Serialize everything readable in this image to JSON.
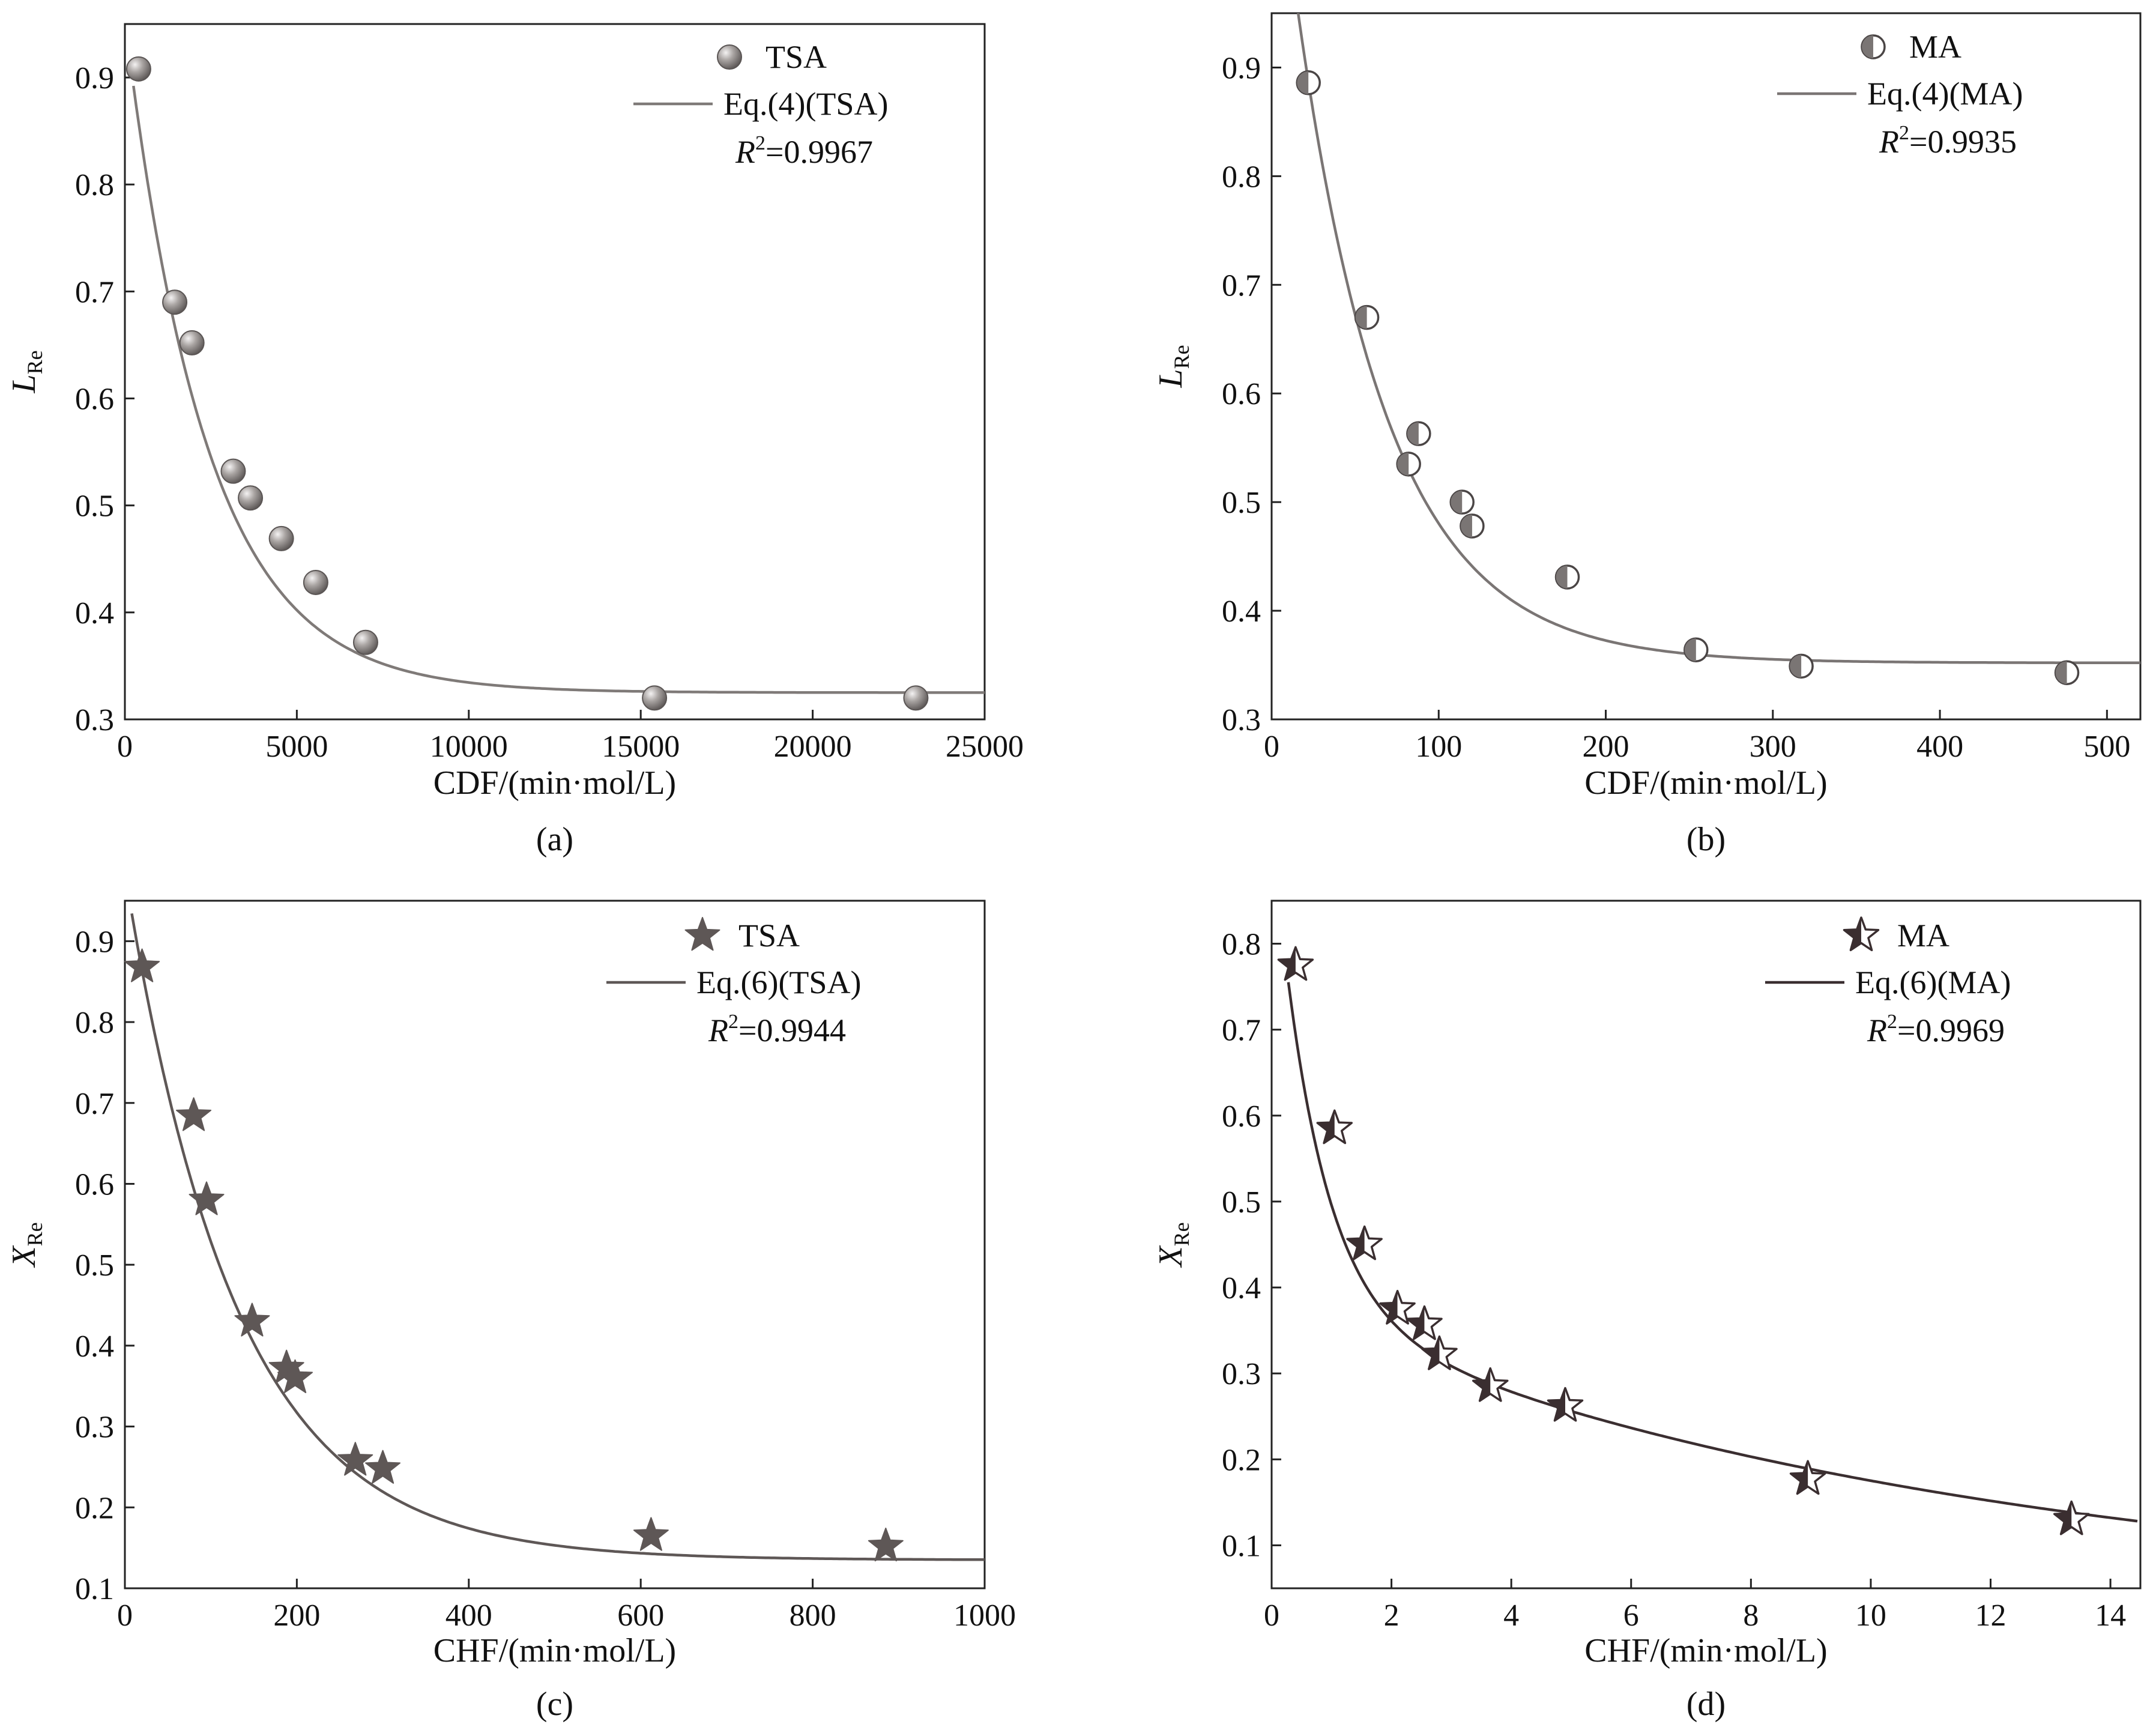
{
  "figure": {
    "title": ""
  },
  "chart_data": [
    {
      "type": "scatter",
      "panel": "(a)",
      "title": "",
      "xlabel": "CDF/(min·mol/L)",
      "ylabel": "L",
      "ylabel_sub": "Re",
      "xlim": [
        0,
        25000
      ],
      "ylim": [
        0.3,
        0.95
      ],
      "xticks": [
        0,
        5000,
        10000,
        15000,
        20000,
        25000
      ],
      "yticks": [
        0.3,
        0.4,
        0.5,
        0.6,
        0.7,
        0.8,
        0.9
      ],
      "grid": false,
      "legend": {
        "position": "top-right",
        "marker_label": "TSA",
        "line_label": "Eq.(4)(TSA)",
        "r2_symbol": "R",
        "r2_text": "=0.9967"
      },
      "marker": "sphere",
      "color": "#7f7a78",
      "series": [
        {
          "name": "TSA",
          "x": [
            400,
            1450,
            1950,
            3150,
            3650,
            4550,
            5550,
            7000,
            15400,
            23000
          ],
          "y": [
            0.908,
            0.69,
            0.652,
            0.532,
            0.507,
            0.469,
            0.428,
            0.372,
            0.32,
            0.32
          ]
        }
      ],
      "fit": {
        "name": "Eq.(4)(TSA)",
        "model": "exp_decay",
        "a": 0.325,
        "b": 0.63,
        "k": 0.00042,
        "x_start": 250,
        "x_end": 25000
      }
    },
    {
      "type": "scatter",
      "panel": "(b)",
      "title": "",
      "xlabel": "CDF/(min·mol/L)",
      "ylabel": "L",
      "ylabel_sub": "Re",
      "xlim": [
        0,
        520
      ],
      "ylim": [
        0.3,
        0.95
      ],
      "xticks": [
        0,
        100,
        200,
        300,
        400,
        500
      ],
      "yticks": [
        0.3,
        0.4,
        0.5,
        0.6,
        0.7,
        0.8,
        0.9
      ],
      "grid": false,
      "legend": {
        "position": "top-right",
        "marker_label": "MA",
        "line_label": "Eq.(4)(MA)",
        "r2_symbol": "R",
        "r2_text": "=0.9935"
      },
      "marker": "half-circle",
      "color": "#7a7574",
      "series": [
        {
          "name": "MA",
          "x": [
            22,
            57,
            82,
            88,
            114,
            120,
            177,
            254,
            317,
            476
          ],
          "y": [
            0.886,
            0.67,
            0.535,
            0.563,
            0.5,
            0.478,
            0.431,
            0.364,
            0.349,
            0.343
          ]
        }
      ],
      "fit": {
        "name": "Eq.(4)(MA)",
        "model": "exp_decay",
        "a": 0.352,
        "b": 0.8,
        "k": 0.0183,
        "x_start": 15,
        "x_end": 520
      }
    },
    {
      "type": "scatter",
      "panel": "(c)",
      "title": "",
      "xlabel": "CHF/(min·mol/L)",
      "ylabel": "X",
      "ylabel_sub": "Re",
      "xlim": [
        0,
        1000
      ],
      "ylim": [
        0.1,
        0.95
      ],
      "xticks": [
        0,
        200,
        400,
        600,
        800,
        1000
      ],
      "yticks": [
        0.1,
        0.2,
        0.3,
        0.4,
        0.5,
        0.6,
        0.7,
        0.8,
        0.9
      ],
      "grid": false,
      "legend": {
        "position": "top-right",
        "marker_label": "TSA",
        "line_label": "Eq.(6)(TSA)",
        "r2_symbol": "R",
        "r2_text": "=0.9944"
      },
      "marker": "star-filled",
      "color": "#5e5756",
      "series": [
        {
          "name": "TSA",
          "x": [
            20,
            80,
            95,
            148,
            188,
            198,
            268,
            300,
            612,
            885
          ],
          "y": [
            0.868,
            0.684,
            0.58,
            0.43,
            0.372,
            0.36,
            0.258,
            0.248,
            0.165,
            0.152
          ]
        }
      ],
      "fit": {
        "name": "Eq.(6)(TSA)",
        "model": "exp_decay",
        "a": 0.135,
        "b": 0.85,
        "k": 0.0077,
        "x_start": 8,
        "x_end": 1000
      }
    },
    {
      "type": "scatter",
      "panel": "(d)",
      "title": "",
      "xlabel": "CHF/(min·mol/L)",
      "ylabel": "X",
      "ylabel_sub": "Re",
      "xlim": [
        0,
        14.5
      ],
      "ylim": [
        0.05,
        0.85
      ],
      "xticks": [
        0,
        2,
        4,
        6,
        8,
        10,
        12,
        14
      ],
      "yticks": [
        0.1,
        0.2,
        0.3,
        0.4,
        0.5,
        0.6,
        0.7,
        0.8
      ],
      "grid": false,
      "legend": {
        "position": "top-right",
        "marker_label": "MA",
        "line_label": "Eq.(6)(MA)",
        "r2_symbol": "R",
        "r2_text": "=0.9969"
      },
      "marker": "star-half",
      "color": "#3a2e30",
      "series": [
        {
          "name": "MA",
          "x": [
            0.4,
            1.05,
            1.55,
            2.1,
            2.55,
            2.8,
            3.65,
            4.9,
            8.95,
            13.35
          ],
          "y": [
            0.775,
            0.585,
            0.45,
            0.375,
            0.357,
            0.322,
            0.285,
            0.262,
            0.177,
            0.13
          ]
        }
      ],
      "fit": {
        "name": "Eq.(6)(MA)",
        "model": "biexp_decay",
        "c": 0.03,
        "a1": 0.56,
        "k1": 1.35,
        "a2": 0.35,
        "k2": 0.088,
        "x_start": 0.28,
        "x_end": 14.45
      }
    }
  ]
}
